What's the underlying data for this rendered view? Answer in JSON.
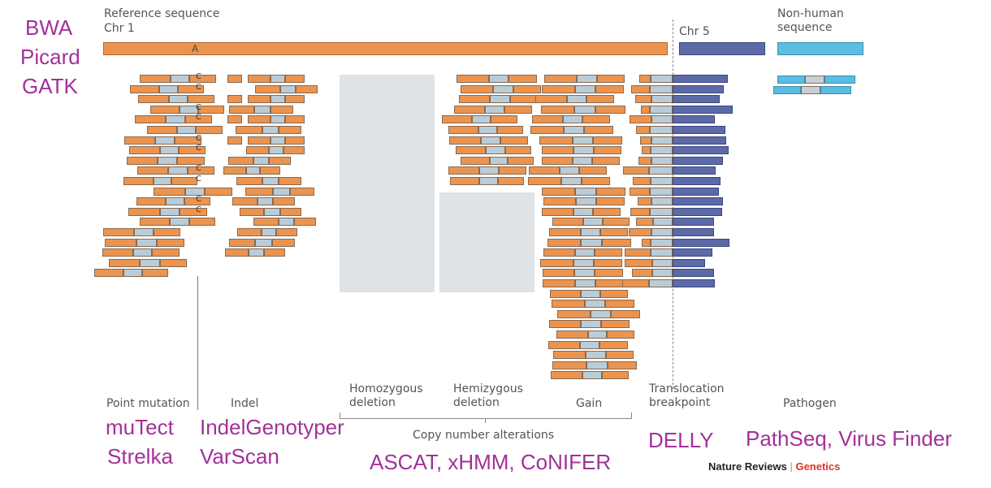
{
  "reference": {
    "label": "Reference sequence",
    "chr1": "Chr 1",
    "base": "A",
    "chr5": "Chr 5",
    "nonhuman": "Non-human\nsequence"
  },
  "mutant_base": "C",
  "categories": {
    "point_mutation": "Point mutation",
    "indel": "Indel",
    "homozygous_deletion": "Homozygous\ndeletion",
    "hemizygous_deletion": "Hemizygous\ndeletion",
    "gain": "Gain",
    "copy_number": "Copy number alterations",
    "translocation": "Translocation\nbreakpoint",
    "pathogen": "Pathogen"
  },
  "tools": {
    "alignment": [
      "BWA",
      "Picard",
      "GATK"
    ],
    "point_mutation": [
      "muTect",
      "Strelka"
    ],
    "indel": [
      "IndelGenotyper",
      "VarScan"
    ],
    "copy_number": "ASCAT, xHMM, CoNIFER",
    "translocation": "DELLY",
    "pathogen": "PathSeq, Virus Finder"
  },
  "credit": {
    "journal": "Nature Reviews",
    "section": "Genetics"
  },
  "colors": {
    "read_orange": "#eb9450",
    "read_blue": "#b9ccd8",
    "chr5": "#5d6aa8",
    "pathogen": "#5bbde0",
    "tool_text": "#a3309a",
    "credit_red": "#d0392b"
  }
}
